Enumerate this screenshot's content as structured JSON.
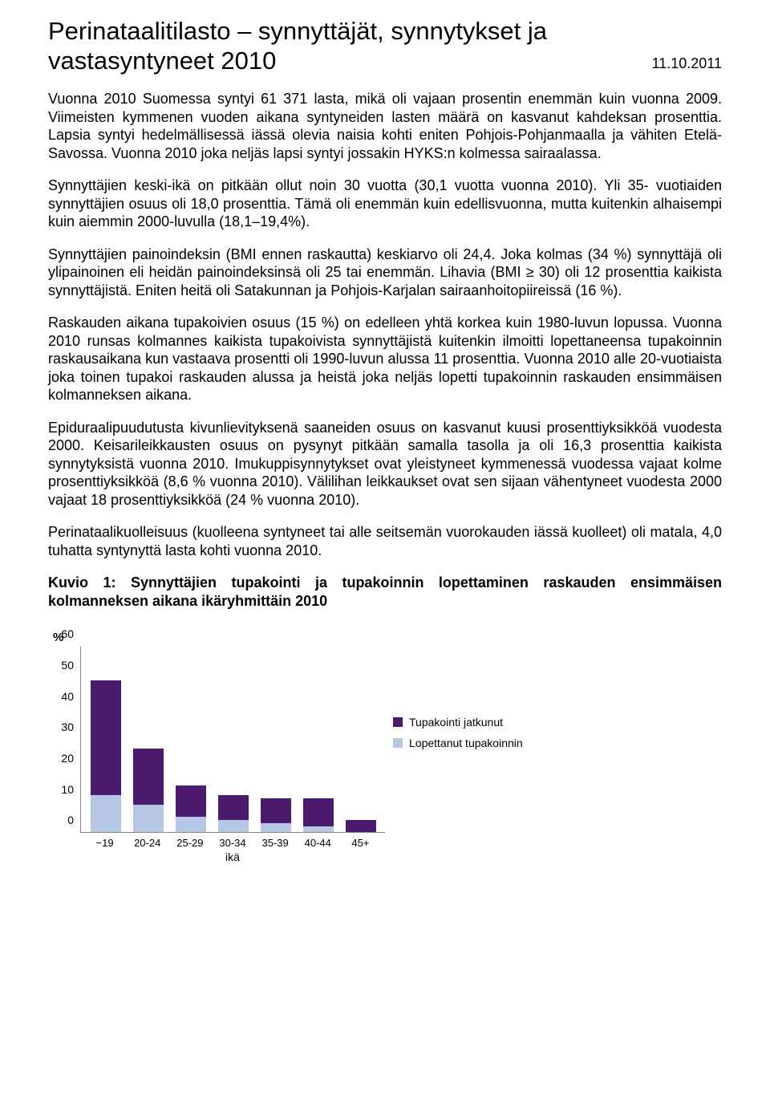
{
  "header": {
    "title": "Perinataalitilasto – synnyttäjät, synnytykset ja vastasyntyneet 2010",
    "date": "11.10.2011"
  },
  "paragraphs": {
    "p1": "Vuonna 2010 Suomessa syntyi 61 371 lasta, mikä oli vajaan  prosentin enemmän kuin vuonna 2009. Viimeisten kymmenen vuoden aikana syntyneiden lasten määrä on kasvanut kahdeksan prosenttia. Lapsia syntyi hedelmällisessä iässä olevia naisia kohti eniten Pohjois-Pohjanmaalla ja vähiten Etelä-Savossa. Vuonna 2010 joka neljäs lapsi syntyi jossakin HYKS:n kolmessa sairaalassa.",
    "p2": "Synnyttäjien keski-ikä on pitkään ollut noin 30 vuotta (30,1 vuotta vuonna 2010). Yli 35- vuotiaiden synnyttäjien osuus oli 18,0 prosenttia. Tämä oli enemmän kuin edellisvuonna, mutta kuitenkin alhaisempi kuin aiemmin 2000-luvulla (18,1–19,4%).",
    "p3": "Synnyttäjien painoindeksin (BMI ennen raskautta) keskiarvo oli 24,4. Joka kolmas (34 %) synnyttäjä oli ylipainoinen eli heidän painoindeksinsä oli 25 tai enemmän. Lihavia (BMI ≥ 30) oli 12 prosenttia kaikista synnyttäjistä. Eniten heitä oli Satakunnan ja Pohjois-Karjalan sairaanhoitopiireissä (16 %).",
    "p4": "Raskauden aikana tupakoivien osuus (15 %) on edelleen yhtä korkea kuin 1980-luvun lopussa. Vuonna 2010 runsas kolmannes kaikista tupakoivista synnyttäjistä kuitenkin ilmoitti lopettaneensa tupakoinnin raskausaikana kun vastaava prosentti oli 1990-luvun alussa 11 prosenttia. Vuonna 2010 alle 20-vuotiaista joka toinen tupakoi raskauden alussa ja heistä joka neljäs lopetti tupakoinnin raskauden ensimmäisen kolmanneksen aikana.",
    "p5": "Epiduraalipuudutusta kivunlievityksenä saaneiden osuus on kasvanut kuusi prosenttiyksikköä vuodesta 2000. Keisarileikkausten osuus on pysynyt pitkään samalla tasolla ja oli 16,3 prosenttia kaikista synnytyksistä vuonna 2010. Imukuppisynnytykset ovat yleistyneet kymmenessä vuodessa vajaat kolme prosenttiyksikköä (8,6 % vuonna 2010). Välilihan leikkaukset ovat sen sijaan vähentyneet vuodesta 2000 vajaat 18 prosenttiyksikköä (24 % vuonna 2010).",
    "p6": "Perinataalikuolleisuus (kuolleena syntyneet tai alle seitsemän vuorokauden iässä kuolleet) oli matala, 4,0 tuhatta syntynyttä lasta kohti vuonna 2010."
  },
  "chart": {
    "caption": "Kuvio 1: Synnyttäjien tupakointi ja tupakoinnin lopettaminen raskauden ensimmäisen kolmanneksen aikana ikäryhmittäin 2010",
    "type": "stacked-bar",
    "y_label": "%",
    "y_max": 60,
    "y_ticks": [
      0,
      10,
      20,
      30,
      40,
      50,
      60
    ],
    "x_title": "ikä",
    "categories": [
      "−19",
      "20-24",
      "25-29",
      "30-34",
      "35-39",
      "40-44",
      "45+"
    ],
    "series": [
      {
        "name": "Lopettanut tupakoinnin",
        "color": "#b5c7e4",
        "values": [
          12,
          9,
          5,
          4,
          3,
          2,
          0
        ]
      },
      {
        "name": "Tupakointi jatkunut",
        "color": "#4a1a6d",
        "values": [
          37,
          18,
          10,
          8,
          8,
          9,
          4
        ]
      }
    ],
    "background_color": "#ffffff",
    "axis_color": "#888888",
    "tick_fontsize": 14,
    "label_fontsize": 14
  }
}
